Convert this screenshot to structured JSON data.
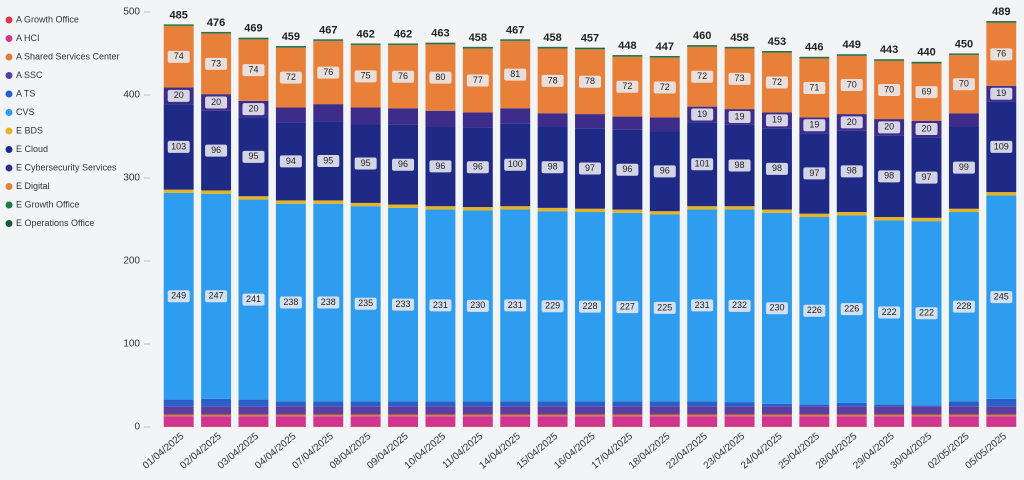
{
  "chart_data": {
    "type": "stacked_bar",
    "categories": [
      "01/04/2025",
      "02/04/2025",
      "03/04/2025",
      "04/04/2025",
      "07/04/2025",
      "08/04/2025",
      "09/04/2025",
      "10/04/2025",
      "11/04/2025",
      "14/04/2025",
      "15/04/2025",
      "16/04/2025",
      "17/04/2025",
      "18/04/2025",
      "22/04/2025",
      "23/04/2025",
      "24/04/2025",
      "25/04/2025",
      "28/04/2025",
      "29/04/2025",
      "30/04/2025",
      "02/05/2025",
      "05/05/2025"
    ],
    "totals": [
      485,
      476,
      469,
      459,
      467,
      462,
      462,
      463,
      458,
      467,
      458,
      457,
      448,
      447,
      460,
      458,
      453,
      446,
      449,
      443,
      440,
      450,
      489
    ],
    "ylim": [
      0,
      500
    ],
    "yticks": [
      0,
      100,
      200,
      300,
      400,
      500
    ],
    "legend": "left",
    "series": [
      {
        "name": "A Growth Office",
        "color": "#e0344a",
        "values": [
          1,
          1,
          1,
          1,
          1,
          1,
          1,
          1,
          1,
          1,
          1,
          1,
          1,
          1,
          1,
          1,
          1,
          1,
          1,
          1,
          1,
          1,
          1
        ]
      },
      {
        "name": "A HCI",
        "color": "#d0358f",
        "values": [
          12,
          12,
          12,
          12,
          12,
          12,
          12,
          12,
          12,
          12,
          12,
          12,
          12,
          12,
          12,
          12,
          12,
          12,
          12,
          12,
          12,
          12,
          12
        ]
      },
      {
        "name": "A Shared Services Center",
        "color": "#e07b39",
        "values": [
          2,
          2,
          2,
          2,
          2,
          2,
          2,
          2,
          2,
          2,
          2,
          2,
          2,
          2,
          2,
          2,
          2,
          2,
          2,
          2,
          2,
          2,
          2
        ]
      },
      {
        "name": "A SSC",
        "color": "#5a3fa0",
        "values": [
          10,
          10,
          10,
          10,
          10,
          10,
          10,
          10,
          10,
          10,
          10,
          10,
          10,
          10,
          10,
          10,
          10,
          10,
          10,
          10,
          10,
          10,
          10
        ]
      },
      {
        "name": "A TS",
        "color": "#2a5fc8",
        "values": [
          8,
          9,
          8,
          6,
          6,
          6,
          6,
          6,
          6,
          6,
          6,
          6,
          6,
          6,
          6,
          5,
          3,
          2,
          4,
          2,
          1,
          6,
          9
        ]
      },
      {
        "name": "CVS",
        "color": "#2e9df0",
        "show_labels": true,
        "values": [
          249,
          247,
          241,
          238,
          238,
          235,
          233,
          231,
          230,
          231,
          229,
          228,
          227,
          225,
          231,
          232,
          230,
          226,
          226,
          222,
          222,
          228,
          245
        ]
      },
      {
        "name": "E BDS",
        "color": "#e6b422",
        "values": [
          4,
          4,
          4,
          4,
          4,
          4,
          4,
          4,
          4,
          4,
          4,
          4,
          4,
          4,
          4,
          4,
          4,
          4,
          4,
          4,
          4,
          4,
          4
        ]
      },
      {
        "name": "E Cloud",
        "color": "#1f2a86",
        "show_labels": true,
        "values": [
          103,
          96,
          95,
          94,
          95,
          95,
          96,
          96,
          96,
          100,
          98,
          97,
          96,
          96,
          101,
          98,
          98,
          97,
          98,
          98,
          97,
          99,
          109
        ]
      },
      {
        "name": "E Cybersecurity Services",
        "color": "#3d2c8a",
        "values": [
          20,
          20,
          20,
          18,
          21,
          20,
          20,
          19,
          18,
          18,
          16,
          17,
          16,
          17,
          19,
          19,
          19,
          19,
          20,
          20,
          20,
          16,
          19
        ],
        "value_labels": [
          "20",
          "20",
          "20",
          null,
          null,
          null,
          null,
          null,
          null,
          null,
          null,
          null,
          null,
          null,
          "19",
          "19",
          "19",
          "19",
          "20",
          "20",
          "20",
          null,
          "19"
        ]
      },
      {
        "name": "E Digital",
        "color": "#e8803a",
        "show_labels": true,
        "values": [
          74,
          73,
          74,
          72,
          76,
          75,
          76,
          80,
          77,
          81,
          78,
          78,
          72,
          72,
          72,
          73,
          72,
          71,
          70,
          70,
          69,
          70,
          76
        ]
      },
      {
        "name": "E Growth Office",
        "color": "#1f7a4a",
        "values": [
          1,
          1,
          1,
          1,
          1,
          1,
          1,
          1,
          1,
          1,
          1,
          1,
          1,
          1,
          1,
          1,
          1,
          1,
          1,
          1,
          1,
          1,
          1
        ]
      },
      {
        "name": "E Operations Office",
        "color": "#145a32",
        "values": [
          1,
          1,
          1,
          1,
          1,
          1,
          1,
          1,
          1,
          1,
          1,
          1,
          1,
          1,
          1,
          1,
          1,
          1,
          1,
          1,
          1,
          1,
          1
        ]
      }
    ]
  }
}
